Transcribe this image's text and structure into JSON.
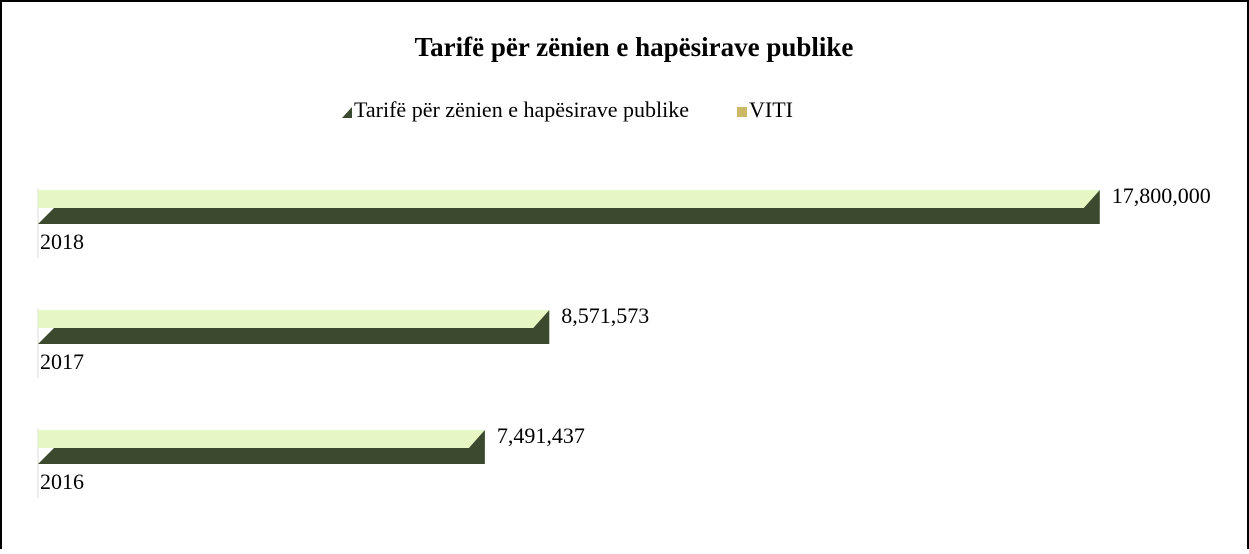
{
  "chart_data": {
    "type": "bar3d-horizontal",
    "title": "Tarifë për zënien e hapësirave publike",
    "categories": [
      "2018",
      "2017",
      "2016"
    ],
    "series": [
      {
        "name": "Tarifë për zënien e hapësirave publike",
        "color": "#3b4a2e",
        "top_color": "#e6f7c4",
        "values": [
          17800000,
          8571573,
          7491437
        ],
        "value_labels": [
          "17,800,000",
          "8,571,573",
          "7,491,437"
        ]
      },
      {
        "name": "VITI",
        "color": "#cdb865",
        "values": [
          2018,
          2017,
          2016
        ]
      }
    ],
    "xlim": [
      0,
      20000000
    ],
    "legend": "top"
  }
}
